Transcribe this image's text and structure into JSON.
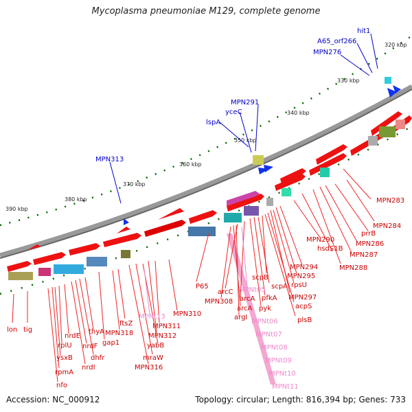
{
  "title": "Mycoplasma pneumoniae M129, complete genome",
  "footer": {
    "accession": "Accession: NC_000912",
    "summary": "Topology: circular; Length: 816,394 bp; Genes: 733"
  },
  "colors": {
    "background": "#ffffff",
    "backbone": "#888888",
    "gene_forward": "#ee0000",
    "gene_reverse": "#ee0000",
    "label_blue": "#0000cc",
    "label_red": "#cc0000",
    "label_pink": "#ee88cc",
    "tick_green": "#006600"
  },
  "kbp_ticks": [
    "320 kbp",
    "330 kbp",
    "340 kbp",
    "350 kbp",
    "360 kbp",
    "370 kbp",
    "380 kbp",
    "390 kbp"
  ],
  "outer_labels": [
    "hit1",
    "A65_orf266",
    "MPN276",
    "MPN291",
    "yceC",
    "lspA",
    "MPN313"
  ],
  "inner_labels": [
    "prrB",
    "MPN283",
    "MPN284",
    "MPN286",
    "MPN287",
    "MPN288",
    "hsdS1B",
    "MPN290",
    "MPN294",
    "MPN295",
    "rpsU",
    "MPN297",
    "acpS",
    "plsB",
    "scpB",
    "scpA",
    "pfkA",
    "pyk",
    "arcC",
    "arcA",
    "MPN308",
    "arcA",
    "argI",
    "P65",
    "MPN310",
    "MPN311",
    "MPN312",
    "yabB",
    "mraW",
    "MPN316",
    "ftsZ",
    "MPN318",
    "gap1",
    "thyA",
    "dhfr",
    "nrdF",
    "nrdI",
    "nrdE",
    "rplU",
    "ysxB",
    "rpmA",
    "nfo",
    "lon",
    "tig"
  ],
  "pink_labels": [
    "MPNt05",
    "MPNt06",
    "MPNt07",
    "MPNt08",
    "MPNt09",
    "MPNt10",
    "MPNt11",
    "MPNt13"
  ]
}
